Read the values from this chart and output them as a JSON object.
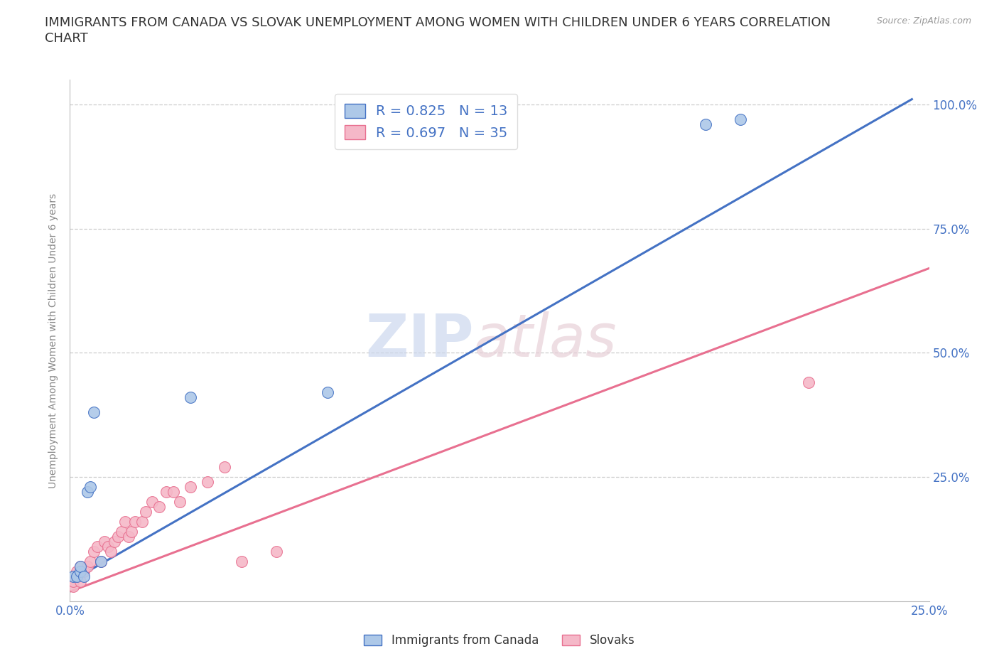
{
  "title_line1": "IMMIGRANTS FROM CANADA VS SLOVAK UNEMPLOYMENT AMONG WOMEN WITH CHILDREN UNDER 6 YEARS CORRELATION",
  "title_line2": "CHART",
  "source": "Source: ZipAtlas.com",
  "ylabel": "Unemployment Among Women with Children Under 6 years",
  "xlim": [
    0.0,
    0.25
  ],
  "ylim": [
    0.0,
    1.05
  ],
  "x_ticks": [
    0.0,
    0.05,
    0.1,
    0.15,
    0.2,
    0.25
  ],
  "x_tick_labels": [
    "0.0%",
    "",
    "",
    "",
    "",
    "25.0%"
  ],
  "y_ticks": [
    0.25,
    0.5,
    0.75,
    1.0
  ],
  "y_tick_labels": [
    "25.0%",
    "50.0%",
    "75.0%",
    "100.0%"
  ],
  "blue_R": 0.825,
  "blue_N": 13,
  "pink_R": 0.697,
  "pink_N": 35,
  "blue_color": "#adc8e8",
  "pink_color": "#f5b8c8",
  "blue_line_color": "#4472c4",
  "pink_line_color": "#e87090",
  "blue_scatter_x": [
    0.001,
    0.002,
    0.003,
    0.003,
    0.004,
    0.005,
    0.006,
    0.007,
    0.009,
    0.035,
    0.075,
    0.185,
    0.195
  ],
  "blue_scatter_y": [
    0.05,
    0.05,
    0.06,
    0.07,
    0.05,
    0.22,
    0.23,
    0.38,
    0.08,
    0.41,
    0.42,
    0.96,
    0.97
  ],
  "pink_scatter_x": [
    0.001,
    0.001,
    0.002,
    0.002,
    0.003,
    0.003,
    0.004,
    0.005,
    0.006,
    0.007,
    0.008,
    0.009,
    0.01,
    0.011,
    0.012,
    0.013,
    0.014,
    0.015,
    0.016,
    0.017,
    0.018,
    0.019,
    0.021,
    0.022,
    0.024,
    0.026,
    0.028,
    0.03,
    0.032,
    0.035,
    0.04,
    0.045,
    0.05,
    0.06,
    0.215
  ],
  "pink_scatter_y": [
    0.03,
    0.04,
    0.05,
    0.06,
    0.04,
    0.07,
    0.06,
    0.07,
    0.08,
    0.1,
    0.11,
    0.08,
    0.12,
    0.11,
    0.1,
    0.12,
    0.13,
    0.14,
    0.16,
    0.13,
    0.14,
    0.16,
    0.16,
    0.18,
    0.2,
    0.19,
    0.22,
    0.22,
    0.2,
    0.23,
    0.24,
    0.27,
    0.08,
    0.1,
    0.44
  ],
  "blue_line_x": [
    0.0,
    0.245
  ],
  "blue_line_y": [
    0.04,
    1.01
  ],
  "pink_line_x": [
    0.0,
    0.25
  ],
  "pink_line_y": [
    0.02,
    0.67
  ],
  "grid_color": "#cccccc",
  "bg_color": "#ffffff",
  "title_color": "#333333",
  "axis_label_color": "#888888",
  "tick_color": "#4472c4",
  "legend_fontsize": 14,
  "title_fontsize": 13
}
